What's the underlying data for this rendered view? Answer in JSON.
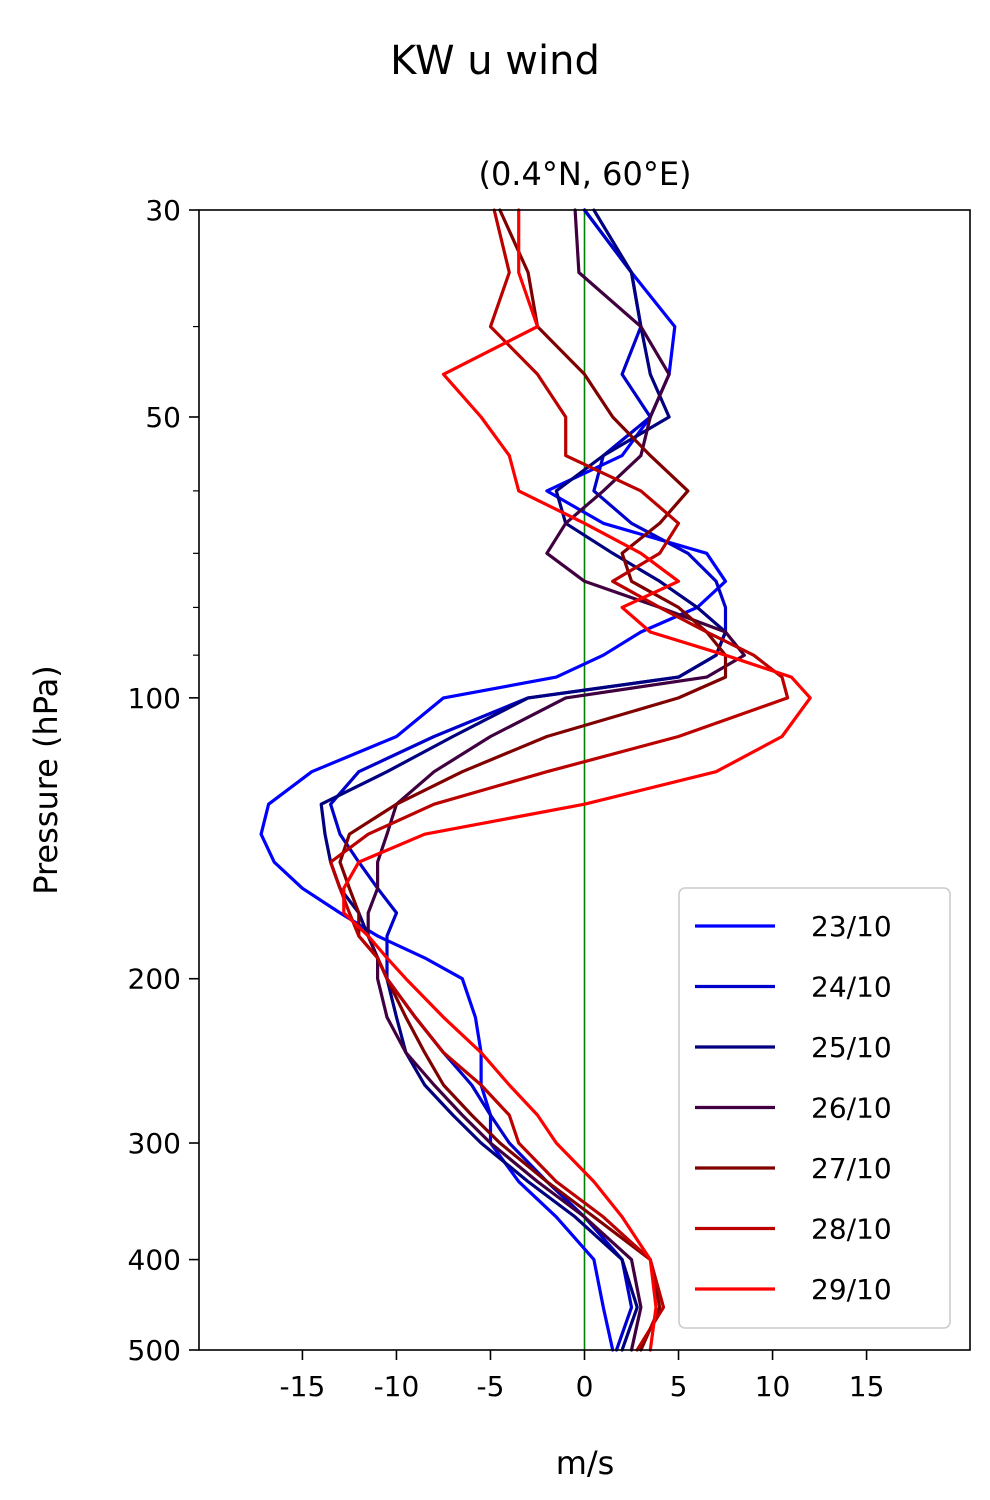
{
  "chart_data": {
    "type": "line",
    "title": "KW u wind",
    "subtitle": "(0.4°N, 60°E)",
    "xlabel": "m/s",
    "ylabel": "Pressure (hPa)",
    "xlim": [
      -20.5,
      20.5
    ],
    "ylim": [
      500,
      30
    ],
    "yscale": "log",
    "xticks": [
      -15,
      -10,
      -5,
      0,
      5,
      10,
      15
    ],
    "xtick_labels": [
      "-15",
      "-10",
      "-5",
      "0",
      "5",
      "10",
      "15"
    ],
    "yticks": [
      30,
      50,
      100,
      200,
      300,
      400,
      500
    ],
    "ytick_labels": [
      "30",
      "50",
      "100",
      "200",
      "300",
      "400",
      "500"
    ],
    "yminor_ticks": [
      40,
      60,
      70,
      80,
      90
    ],
    "vline": {
      "x": 0,
      "color": "#008000"
    },
    "grid": false,
    "legend_position": "lower-right",
    "pressure_levels": [
      30,
      35,
      40,
      45,
      50,
      55,
      60,
      65,
      70,
      75,
      80,
      85,
      90,
      95,
      100,
      110,
      120,
      130,
      140,
      150,
      160,
      170,
      180,
      190,
      200,
      220,
      240,
      260,
      280,
      300,
      330,
      360,
      400,
      450,
      500
    ],
    "series": [
      {
        "name": "23/10",
        "color": "#0000ff",
        "values": [
          0,
          2.5,
          4.8,
          4.5,
          3.5,
          2.0,
          -2.0,
          1.0,
          6.5,
          7.5,
          6.0,
          3.0,
          1.0,
          -1.5,
          -7.5,
          -10.0,
          -14.5,
          -16.8,
          -17.2,
          -16.5,
          -15.0,
          -13.0,
          -11.0,
          -8.5,
          -6.5,
          -5.8,
          -5.5,
          -5.5,
          -5.0,
          -5.0,
          -3.5,
          -1.5,
          0.5,
          1.0,
          1.5
        ]
      },
      {
        "name": "24/10",
        "color": "#0000cc",
        "values": [
          0,
          2.5,
          3.0,
          2.0,
          3.5,
          1.0,
          0.5,
          2.5,
          5.5,
          7.0,
          7.5,
          7.5,
          7.0,
          5.0,
          -3.0,
          -8.0,
          -12.0,
          -13.5,
          -13.0,
          -12.0,
          -11.0,
          -10.0,
          -10.5,
          -10.5,
          -10.5,
          -9.0,
          -7.5,
          -6.0,
          -5.0,
          -4.0,
          -2.0,
          0.0,
          2.0,
          2.5,
          1.7
        ]
      },
      {
        "name": "25/10",
        "color": "#000080",
        "values": [
          0.5,
          2.5,
          3.0,
          3.5,
          4.5,
          1.0,
          -1.5,
          -1.0,
          1.5,
          4.0,
          6.0,
          7.5,
          7.0,
          5.0,
          -3.0,
          -7.0,
          -10.5,
          -14.0,
          -13.8,
          -13.5,
          -13.0,
          -12.0,
          -11.5,
          -11.0,
          -10.5,
          -10.0,
          -9.5,
          -8.5,
          -7.0,
          -5.5,
          -3.0,
          -0.5,
          2.0,
          2.8,
          2.0
        ]
      },
      {
        "name": "26/10",
        "color": "#400040",
        "values": [
          -0.5,
          -0.3,
          3.0,
          4.5,
          3.5,
          3.0,
          1.0,
          -1.0,
          -2.0,
          0.0,
          4.0,
          7.5,
          8.5,
          6.5,
          -1.0,
          -5.0,
          -8.0,
          -10.0,
          -10.5,
          -11.0,
          -11.0,
          -11.5,
          -11.5,
          -11.0,
          -11.0,
          -10.5,
          -9.5,
          -8.0,
          -6.5,
          -5.0,
          -2.5,
          0.0,
          2.5,
          3.0,
          2.5
        ]
      },
      {
        "name": "27/10",
        "color": "#800000",
        "values": [
          -4.5,
          -3.0,
          -2.5,
          0.0,
          1.5,
          3.5,
          5.5,
          4.0,
          2.0,
          2.5,
          5.0,
          6.5,
          7.5,
          7.5,
          5.0,
          -2.0,
          -6.5,
          -10.0,
          -12.5,
          -13.0,
          -12.5,
          -12.0,
          -12.0,
          -11.0,
          -10.5,
          -9.5,
          -8.5,
          -7.5,
          -6.0,
          -4.5,
          -2.0,
          0.5,
          3.5,
          4.0,
          3.0
        ]
      },
      {
        "name": "28/10",
        "color": "#bb0000",
        "values": [
          -4.8,
          -4.0,
          -5.0,
          -2.5,
          -1.0,
          -1.0,
          3.0,
          5.0,
          4.0,
          1.5,
          4.0,
          6.5,
          9.0,
          10.5,
          10.8,
          5.0,
          -2.0,
          -8.0,
          -11.5,
          -13.5,
          -13.0,
          -12.5,
          -12.0,
          -11.0,
          -10.5,
          -9.0,
          -7.5,
          -5.5,
          -4.0,
          -3.5,
          -1.5,
          1.0,
          3.5,
          4.2,
          2.8
        ]
      },
      {
        "name": "29/10",
        "color": "#ff0000",
        "values": [
          -3.5,
          -3.5,
          -2.5,
          -7.5,
          -5.5,
          -4.0,
          -3.5,
          0.0,
          3.0,
          5.0,
          2.0,
          3.5,
          7.5,
          11.0,
          12.0,
          10.5,
          7.0,
          0.0,
          -8.5,
          -12.0,
          -12.8,
          -12.8,
          -11.5,
          -10.5,
          -9.5,
          -7.5,
          -5.5,
          -4.0,
          -2.5,
          -1.5,
          0.5,
          2.0,
          3.5,
          3.8,
          3.5
        ]
      }
    ]
  }
}
